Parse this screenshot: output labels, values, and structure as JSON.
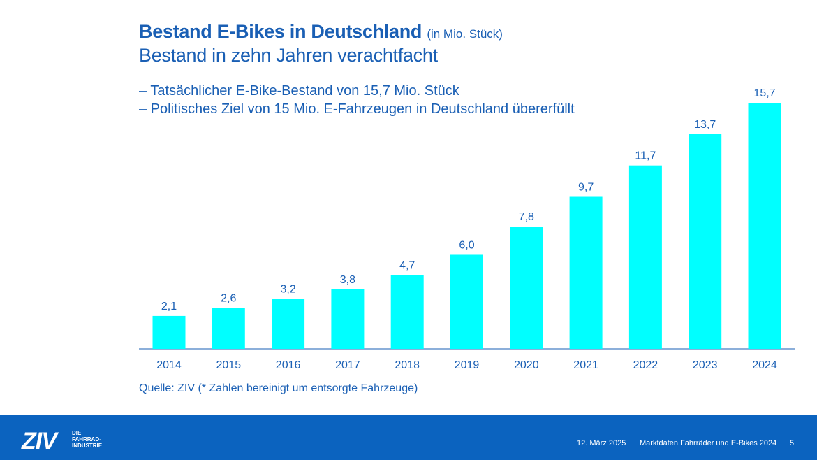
{
  "header": {
    "title": "Bestand E-Bikes in Deutschland",
    "title_unit": "(in Mio. Stück)",
    "subtitle": "Bestand in zehn Jahren verachtfacht",
    "bullets": [
      "– Tatsächlicher E-Bike-Bestand von 15,7 Mio. Stück",
      "– Politisches Ziel von 15 Mio. E-Fahrzeugen in Deutschland übererfüllt"
    ]
  },
  "source": "Quelle: ZIV (* Zahlen bereinigt um entsorgte Fahrzeuge)",
  "footer": {
    "logo": "ZIV",
    "logo_sub": [
      "DIE",
      "FAHRRAD-",
      "INDUSTRIE"
    ],
    "date": "12. März 2025",
    "doc_title": "Marktdaten Fahrräder und E-Bikes 2024",
    "page": "5"
  },
  "colors": {
    "bar": "#00ffff",
    "text": "#1a5fb4",
    "footer_bg": "#0b63bf",
    "axis": "#1a5fb4"
  },
  "chart_data": {
    "type": "bar",
    "title": "Bestand E-Bikes in Deutschland",
    "categories": [
      "2014",
      "2015",
      "2016",
      "2017",
      "2018",
      "2019",
      "2020",
      "2021",
      "2022",
      "2023",
      "2024"
    ],
    "values": [
      2.1,
      2.6,
      3.2,
      3.8,
      4.7,
      6.0,
      7.8,
      9.7,
      11.7,
      13.7,
      15.7
    ],
    "data_labels": [
      "2,1",
      "2,6",
      "3,2",
      "3,8",
      "4,7",
      "6,0",
      "7,8",
      "9,7",
      "11,7",
      "13,7",
      "15,7"
    ],
    "xlabel": "",
    "ylabel": "",
    "ylim": [
      0,
      15.7
    ],
    "grid": false,
    "legend": "none"
  }
}
